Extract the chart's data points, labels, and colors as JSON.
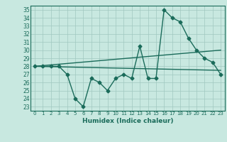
{
  "xlabel": "Humidex (Indice chaleur)",
  "ylabel": "",
  "background_color": "#c8e8e0",
  "line_color": "#1a6b5a",
  "xlim": [
    -0.5,
    23.5
  ],
  "ylim": [
    22.5,
    35.5
  ],
  "yticks": [
    23,
    24,
    25,
    26,
    27,
    28,
    29,
    30,
    31,
    32,
    33,
    34,
    35
  ],
  "xticks": [
    0,
    1,
    2,
    3,
    4,
    5,
    6,
    7,
    8,
    9,
    10,
    11,
    12,
    13,
    14,
    15,
    16,
    17,
    18,
    19,
    20,
    21,
    22,
    23
  ],
  "series1": [
    28,
    28,
    28,
    28,
    27,
    24,
    23,
    26.5,
    26,
    25,
    26.5,
    27,
    26.5,
    30.5,
    26.5,
    26.5,
    35,
    34,
    33.5,
    31.5,
    30,
    29,
    28.5,
    27
  ],
  "series2_x": [
    0,
    23
  ],
  "series2_y": [
    28,
    27.5
  ],
  "series3_x": [
    0,
    23
  ],
  "series3_y": [
    28,
    30
  ],
  "grid_color": "#a0c8c0",
  "marker": "D",
  "markersize": 2.5,
  "linewidth": 1.0
}
